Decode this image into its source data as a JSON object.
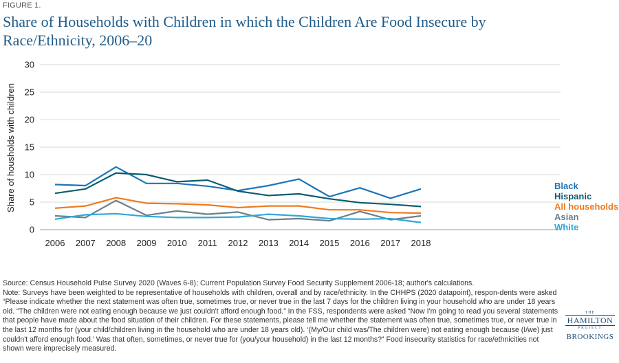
{
  "figure_label": "FIGURE 1.",
  "chart_data": {
    "type": "line",
    "title": "Share of Households with Children in which the Children Are Food Insecure by Race/Ethnicity, 2006–20",
    "xlabel": "",
    "ylabel": "Share of housholds with children",
    "x": [
      "2006",
      "2007",
      "2008",
      "2009",
      "2010",
      "2011",
      "2012",
      "2013",
      "2014",
      "2015",
      "2016",
      "2017",
      "2018"
    ],
    "ylim": [
      0,
      30
    ],
    "yticks": [
      0,
      5,
      10,
      15,
      20,
      25,
      30
    ],
    "grid": true,
    "legend_position": "right",
    "series": [
      {
        "name": "Black",
        "color": "#1a75b8",
        "values": [
          8.2,
          8.0,
          11.4,
          8.4,
          8.4,
          7.9,
          7.1,
          8.0,
          9.2,
          6.0,
          7.6,
          5.7,
          7.4
        ]
      },
      {
        "name": "Hispanic",
        "color": "#0d5c6e",
        "values": [
          6.6,
          7.4,
          10.3,
          10.0,
          8.7,
          9.0,
          7.0,
          6.2,
          6.5,
          5.6,
          4.9,
          4.6,
          4.2
        ]
      },
      {
        "name": "All households",
        "color": "#f07a1d",
        "values": [
          3.9,
          4.3,
          5.8,
          4.8,
          4.7,
          4.5,
          4.0,
          4.3,
          4.3,
          3.6,
          3.6,
          3.1,
          3.0
        ]
      },
      {
        "name": "Asian",
        "color": "#6b7f8c",
        "values": [
          2.5,
          2.2,
          5.3,
          2.6,
          3.4,
          2.8,
          3.2,
          1.8,
          2.0,
          1.6,
          3.3,
          1.8,
          2.5
        ]
      },
      {
        "name": "White",
        "color": "#2ea8d8",
        "values": [
          1.9,
          2.7,
          2.9,
          2.4,
          2.2,
          2.2,
          2.3,
          2.8,
          2.5,
          2.0,
          1.9,
          2.0,
          1.3
        ]
      }
    ]
  },
  "notes": {
    "source": "Source: Census Household Pulse Survey 2020 (Waves 6-8); Current Population Survey Food Security Supplement 2006-18; author's calculations.",
    "note": "Note: Surveys have been weighted to be representative of households with children, overall and by race/ethnicity. In the CHHPS (2020 datapoint), respon-dents were asked “Please indicate whether the next statement was often true, sometimes true, or never true in the last 7 days for the children living in your household who are under 18 years old. “The children were not eating enough because we just couldn't afford enough food.” In the FSS, respondents were asked “Now I'm going to read you several statements that people have made about the food situation of their children. For these statements, please tell me whether the statement was often true, sometimes true, or never true in the last 12 months for (your child/children living in the household who are under 18 years old). ‘(My/Our child was/The children were) not eating enough because (I/we) just couldn't afford enough food.’ Was that often, sometimes, or never true for (you/your household) in the last 12 months?” Food insecurity statistics for race/ethnicities not shown were imprecisely measured."
  },
  "logo": {
    "the": "THE",
    "hamilton": "HAMILTON",
    "project": "PROJECT",
    "brookings": "BROOKINGS"
  }
}
